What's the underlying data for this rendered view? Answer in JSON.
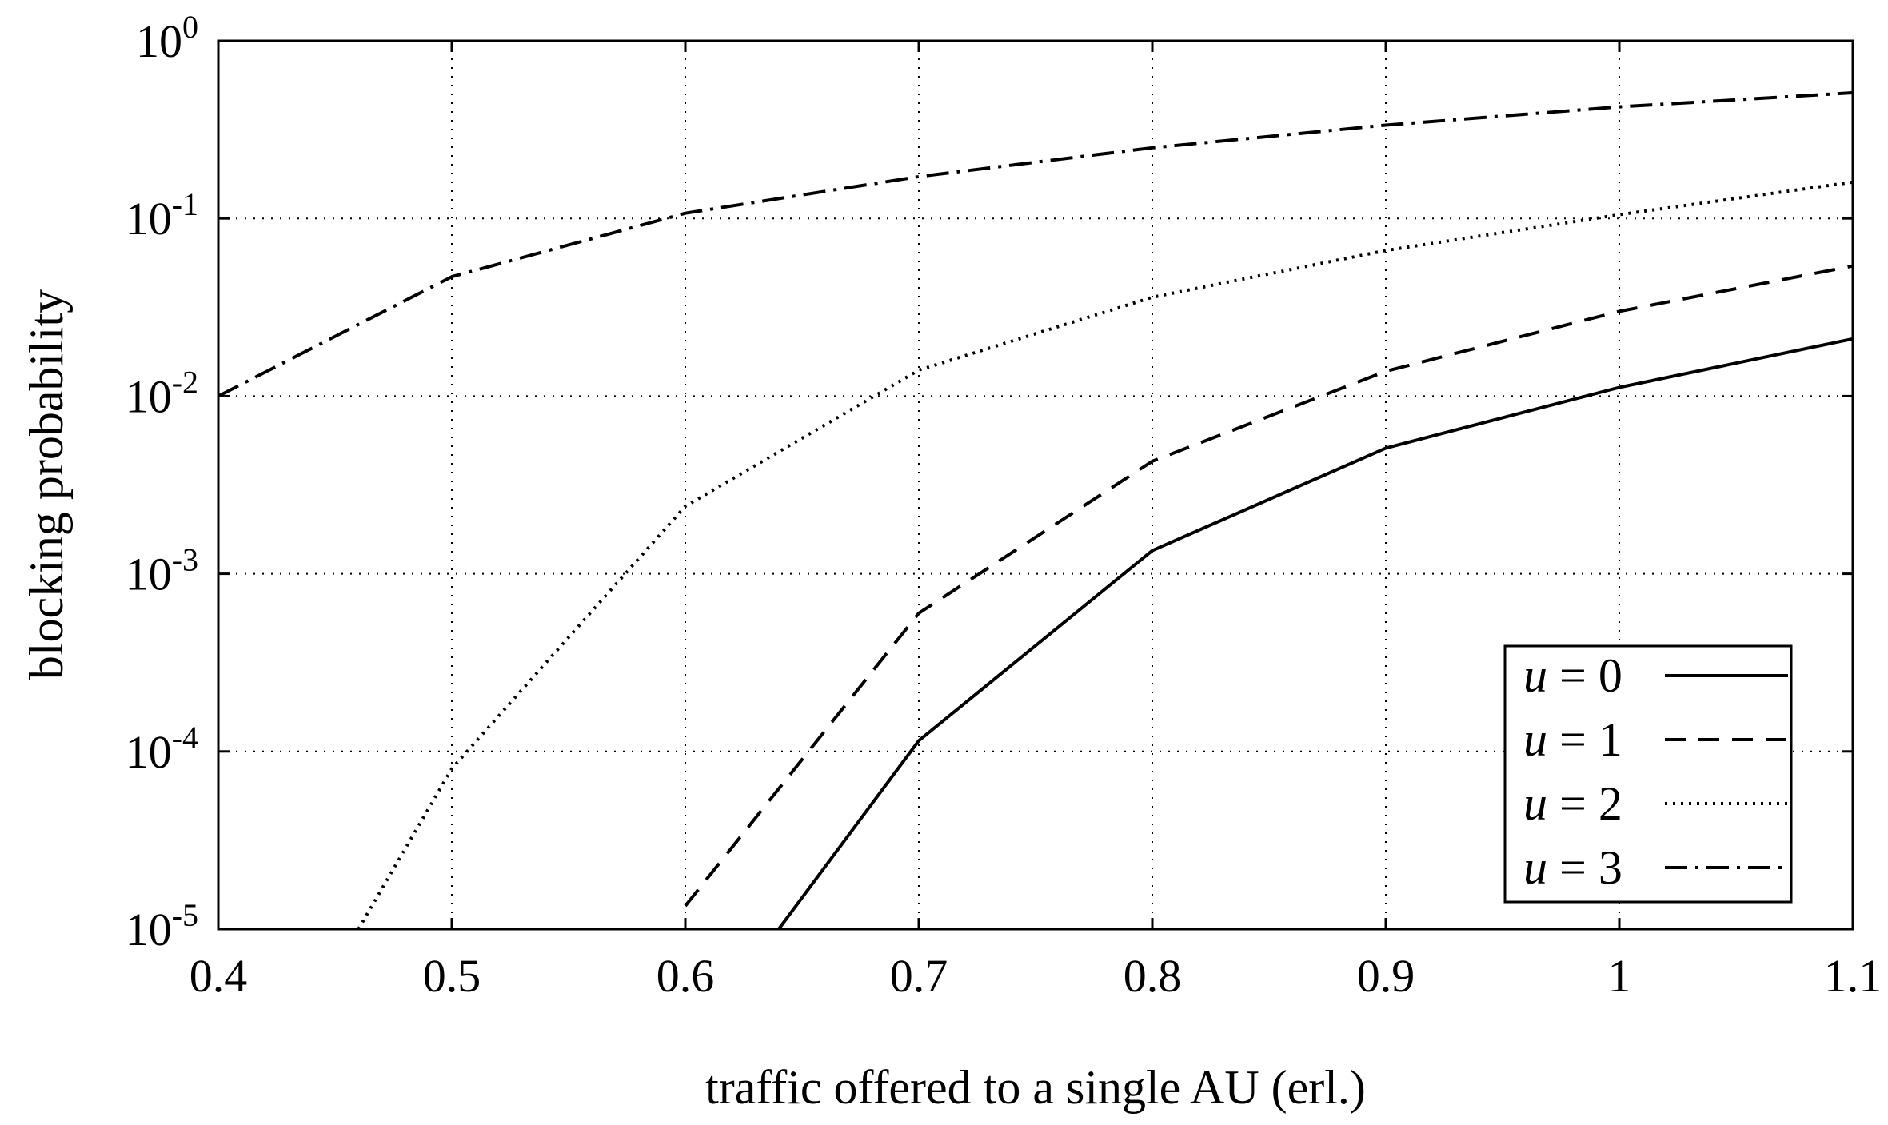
{
  "chart_data": {
    "type": "line",
    "title": "",
    "xlabel": "traffic offered to a single AU (erl.)",
    "ylabel": "blocking probability",
    "xlim": [
      0.4,
      1.1
    ],
    "ylim": [
      1e-05,
      1
    ],
    "yscale": "log",
    "grid": true,
    "legend_position": "bottom-right",
    "x_ticks": [
      {
        "value": 0.4,
        "label": "0.4"
      },
      {
        "value": 0.5,
        "label": "0.5"
      },
      {
        "value": 0.6,
        "label": "0.6"
      },
      {
        "value": 0.7,
        "label": "0.7"
      },
      {
        "value": 0.8,
        "label": "0.8"
      },
      {
        "value": 0.9,
        "label": "0.9"
      },
      {
        "value": 1.0,
        "label": "1"
      },
      {
        "value": 1.1,
        "label": "1.1"
      }
    ],
    "y_ticks": [
      {
        "value": 1,
        "base": "10",
        "exp": "0"
      },
      {
        "value": 0.1,
        "base": "10",
        "exp": "-1"
      },
      {
        "value": 0.01,
        "base": "10",
        "exp": "-2"
      },
      {
        "value": 0.001,
        "base": "10",
        "exp": "-3"
      },
      {
        "value": 0.0001,
        "base": "10",
        "exp": "-4"
      },
      {
        "value": 1e-05,
        "base": "10",
        "exp": "-5"
      }
    ],
    "series": [
      {
        "name": "u = 0",
        "var": "u",
        "rest": " = 0",
        "dash": "none",
        "x": [
          0.64,
          0.7,
          0.8,
          0.9,
          1.0,
          1.1
        ],
        "values": [
          1e-05,
          0.000115,
          0.00135,
          0.0051,
          0.0112,
          0.021
        ]
      },
      {
        "name": "u = 1",
        "var": "u",
        "rest": " = 1",
        "dash": "26 16",
        "x": [
          0.6,
          0.7,
          0.8,
          0.9,
          1.0,
          1.1
        ],
        "values": [
          1.35e-05,
          0.0006,
          0.0043,
          0.0138,
          0.03,
          0.054
        ]
      },
      {
        "name": "u = 2",
        "var": "u",
        "rest": " = 2",
        "dash": "3 7",
        "x": [
          0.46,
          0.5,
          0.6,
          0.7,
          0.8,
          0.9,
          1.0,
          1.1
        ],
        "values": [
          1e-05,
          8e-05,
          0.0024,
          0.014,
          0.036,
          0.066,
          0.105,
          0.16
        ]
      },
      {
        "name": "u = 3",
        "var": "u",
        "rest": " = 3",
        "dash": "28 10 4 10",
        "x": [
          0.4,
          0.5,
          0.6,
          0.7,
          0.8,
          0.9,
          1.0,
          1.1
        ],
        "values": [
          0.01,
          0.047,
          0.107,
          0.172,
          0.25,
          0.335,
          0.425,
          0.51
        ]
      }
    ]
  }
}
